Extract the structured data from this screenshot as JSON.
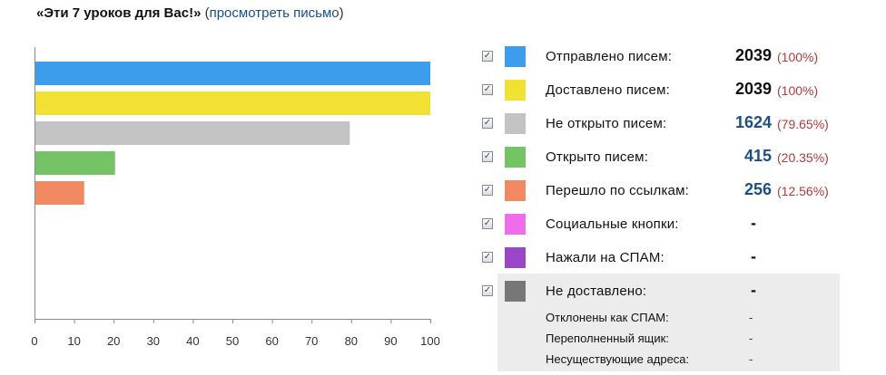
{
  "header": {
    "title": "«Эти 7 уроков для Вас!»",
    "open_paren": "(",
    "link": "просмотреть письмо",
    "close_paren": ")"
  },
  "chart_data": {
    "type": "bar",
    "orientation": "horizontal",
    "categories": [
      "Отправлено писем:",
      "Доставлено писем:",
      "Не открыто писем:",
      "Открыто писем:",
      "Перешло по ссылкам:"
    ],
    "values": [
      100,
      100,
      79.65,
      20.35,
      12.56
    ],
    "colors": [
      "#3d9ded",
      "#f0e132",
      "#c3c3c3",
      "#74c466",
      "#f18a63"
    ],
    "xlim": [
      0,
      100
    ],
    "xticks": [
      "0",
      "10",
      "20",
      "30",
      "40",
      "50",
      "60",
      "70",
      "80",
      "90",
      "100"
    ],
    "grid": false,
    "legend": "right"
  },
  "legend": {
    "rows": [
      {
        "checkbox": "✓",
        "color": "#3d9ded",
        "label": "Отправлено писем:",
        "count": "2039",
        "count_color": "#111111",
        "pct": "(100%)"
      },
      {
        "checkbox": "✓",
        "color": "#f0e132",
        "label": "Доставлено писем:",
        "count": "2039",
        "count_color": "#111111",
        "pct": "(100%)"
      },
      {
        "checkbox": "✓",
        "color": "#c3c3c3",
        "label": "Не открыто писем:",
        "count": "1624",
        "count_color": "#1d4f82",
        "pct": "(79.65%)"
      },
      {
        "checkbox": "✓",
        "color": "#74c466",
        "label": "Открыто писем:",
        "count": "415",
        "count_color": "#1d4f82",
        "pct": "(20.35%)"
      },
      {
        "checkbox": "✓",
        "color": "#f18a63",
        "label": "Перешло по ссылкам:",
        "count": "256",
        "count_color": "#1d4f82",
        "pct": "(12.56%)"
      },
      {
        "checkbox": "✓",
        "color": "#ef6ded",
        "label": "Социальные кнопки:",
        "value": "-"
      },
      {
        "checkbox": "✓",
        "color": "#9b45c9",
        "label": "Нажали на СПАМ:",
        "value": "-"
      },
      {
        "checkbox": "✓",
        "color": "#777777",
        "label": "Не доставлено:",
        "value": "-"
      }
    ],
    "sub_rows": [
      {
        "label": "Отклонены как СПАМ:",
        "value": "-"
      },
      {
        "label": "Переполненный ящик:",
        "value": "-"
      },
      {
        "label": "Несуществующие адреса:",
        "value": "-"
      }
    ]
  }
}
